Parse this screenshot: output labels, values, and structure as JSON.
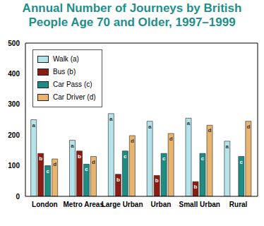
{
  "chart_data": {
    "type": "bar",
    "title": "Annual Number of Journeys by British People Age 70 and Older, 1997–1999",
    "categories": [
      "London",
      "Metro Areas",
      "Large Urban",
      "Urban",
      "Small Urban",
      "Rural"
    ],
    "series": [
      {
        "name": "Walk (a)",
        "label": "a",
        "color": "#b5e3ea",
        "values": [
          250,
          183,
          270,
          245,
          255,
          180
        ]
      },
      {
        "name": "Bus (b)",
        "label": "b",
        "color": "#8b1c14",
        "values": [
          140,
          148,
          72,
          68,
          48,
          null
        ]
      },
      {
        "name": "Car Pass (c)",
        "label": "c",
        "color": "#1e8c82",
        "values": [
          100,
          105,
          148,
          140,
          140,
          130
        ]
      },
      {
        "name": "Car Driver (d)",
        "label": "d",
        "color": "#e8b570",
        "values": [
          122,
          130,
          198,
          205,
          232,
          245
        ]
      }
    ],
    "ylim": [
      0,
      500
    ],
    "yticks": [
      0,
      100,
      200,
      300,
      400,
      500
    ],
    "grid": false,
    "legend": "top-left"
  }
}
